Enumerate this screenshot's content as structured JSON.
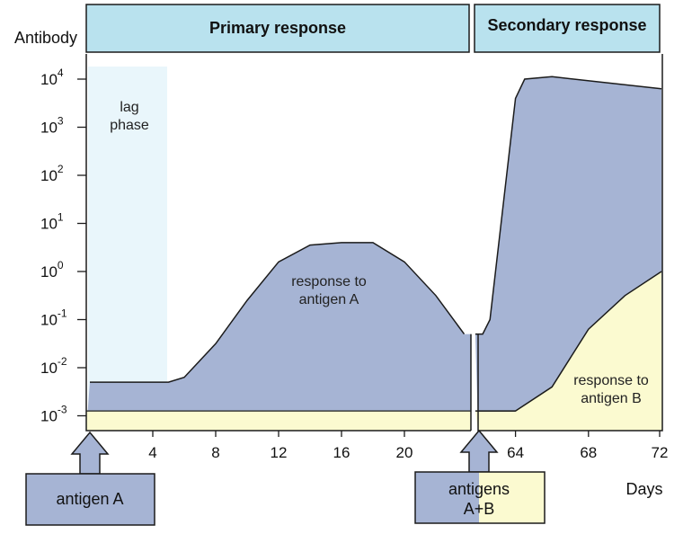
{
  "chart_data": {
    "type": "area",
    "ylabel": "Antibody",
    "xlabel": "Days",
    "y_scale": "log10",
    "y_ticks": [
      {
        "exp": 4,
        "base": "10",
        "sup": "4"
      },
      {
        "exp": 3,
        "base": "10",
        "sup": "3"
      },
      {
        "exp": 2,
        "base": "10",
        "sup": "2"
      },
      {
        "exp": 1,
        "base": "10",
        "sup": "1"
      },
      {
        "exp": 0,
        "base": "10",
        "sup": "0"
      },
      {
        "exp": -1,
        "base": "10",
        "sup": "-1"
      },
      {
        "exp": -2,
        "base": "10",
        "sup": "-2"
      },
      {
        "exp": -3,
        "base": "10",
        "sup": "-3"
      }
    ],
    "x_ticks_primary": [
      "4",
      "8",
      "12",
      "16",
      "20"
    ],
    "x_ticks_secondary": [
      "64",
      "68",
      "72"
    ],
    "headers": {
      "primary": "Primary response",
      "secondary": "Secondary response"
    },
    "lag_phase_label": [
      "lag",
      "phase"
    ],
    "annotations": {
      "response_a": [
        "response to",
        "antigen A"
      ],
      "response_b": [
        "response to",
        "antigen B"
      ]
    },
    "injections": {
      "first": [
        "antigen A"
      ],
      "second": [
        "antigens",
        "A+B"
      ]
    },
    "series": [
      {
        "name": "response to antigen A",
        "points_primary": [
          [
            0,
            -2.3
          ],
          [
            5,
            -2.3
          ],
          [
            6,
            -2.2
          ],
          [
            8,
            -1.5
          ],
          [
            10,
            -0.6
          ],
          [
            12,
            0.2
          ],
          [
            14,
            0.55
          ],
          [
            16,
            0.6
          ],
          [
            18,
            0.6
          ],
          [
            20,
            0.2
          ],
          [
            22,
            -0.5
          ],
          [
            23.8,
            -1.3
          ]
        ],
        "points_secondary": [
          [
            61.8,
            -1.3
          ],
          [
            62.2,
            -1.3
          ],
          [
            62.6,
            -1.0
          ],
          [
            64,
            3.6
          ],
          [
            64.5,
            4.0
          ],
          [
            66,
            4.05
          ],
          [
            72,
            3.8
          ]
        ]
      },
      {
        "name": "response to antigen B",
        "points_secondary": [
          [
            61.8,
            -2.9
          ],
          [
            62,
            -2.9
          ],
          [
            63,
            -2.9
          ],
          [
            64,
            -2.9
          ],
          [
            66,
            -2.4
          ],
          [
            68,
            -1.2
          ],
          [
            70,
            -0.5
          ],
          [
            72,
            0.0
          ]
        ]
      }
    ],
    "baseline_log": -2.9,
    "colors": {
      "antigen_a": "#a6b4d4",
      "antigen_b": "#fbfad0",
      "header": "#b9e2ee",
      "lag": "#e9f6fb",
      "stroke": "#1b1b1b"
    }
  }
}
